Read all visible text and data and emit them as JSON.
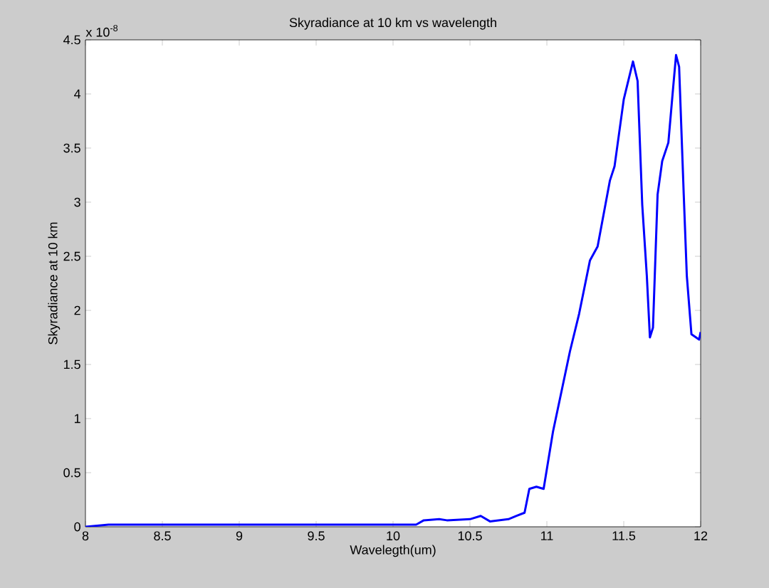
{
  "chart_data": {
    "type": "line",
    "title": "Skyradiance at 10 km vs wavelength",
    "xlabel": "Wavelegth(um)",
    "ylabel": "Skyradiance at 10 km",
    "annotations": [
      "x 10$^{-8}$"
    ],
    "xlim": [
      8,
      12
    ],
    "ylim": [
      0,
      4.5
    ],
    "xticks": [
      8,
      8.5,
      9,
      9.5,
      10,
      10.5,
      11,
      11.5,
      12
    ],
    "yticks": [
      0,
      0.5,
      1,
      1.5,
      2,
      2.5,
      3,
      3.5,
      4,
      4.5
    ],
    "series": [
      {
        "color": "#0000ff",
        "x": [
          8.0,
          8.15,
          10.15,
          10.2,
          10.3,
          10.35,
          10.5,
          10.57,
          10.63,
          10.75,
          10.8,
          10.855,
          10.886,
          10.932,
          10.979,
          11.04,
          11.15,
          11.21,
          11.28,
          11.33,
          11.41,
          11.44,
          11.5,
          11.56,
          11.59,
          11.62,
          11.65,
          11.67,
          11.69,
          11.72,
          11.75,
          11.79,
          11.82,
          11.84,
          11.86,
          11.89,
          11.91,
          11.94,
          11.99,
          12.0
        ],
        "values": [
          0,
          0.02,
          0.02,
          0.06,
          0.07,
          0.06,
          0.07,
          0.1,
          0.05,
          0.07,
          0.1,
          0.13,
          0.35,
          0.37,
          0.35,
          0.88,
          1.62,
          1.97,
          2.46,
          2.59,
          3.2,
          3.33,
          3.95,
          4.3,
          4.12,
          2.98,
          2.32,
          1.75,
          1.84,
          3.07,
          3.38,
          3.55,
          4.04,
          4.36,
          4.25,
          3.07,
          2.32,
          1.78,
          1.73,
          1.8
        ]
      }
    ]
  }
}
